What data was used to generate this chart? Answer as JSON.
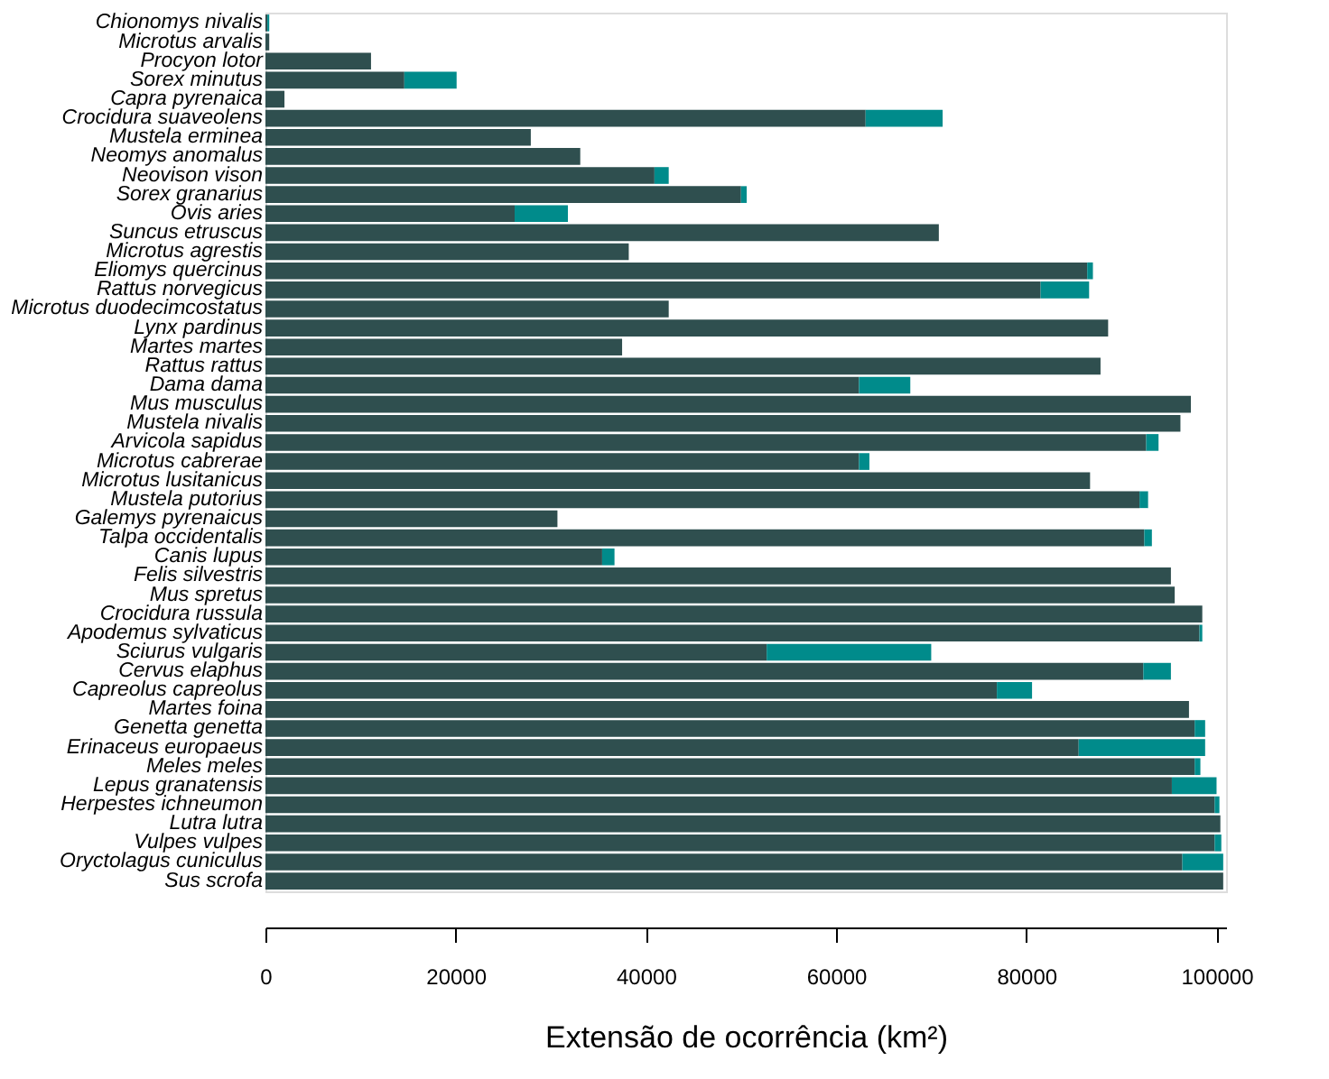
{
  "chart_data": {
    "type": "bar",
    "orientation": "horizontal",
    "stacked": true,
    "xlabel": "Extensão de ocorrência (km²)",
    "categories": [
      "Chionomys nivalis",
      "Microtus arvalis",
      "Procyon lotor",
      "Sorex minutus",
      "Capra pyrenaica",
      "Crocidura suaveolens",
      "Mustela erminea",
      "Neomys anomalus",
      "Neovison vison",
      "Sorex granarius",
      "Ovis aries",
      "Suncus etruscus",
      "Microtus agrestis",
      "Eliomys quercinus",
      "Rattus norvegicus",
      "Microtus duodecimcostatus",
      "Lynx pardinus",
      "Martes martes",
      "Rattus rattus",
      "Dama dama",
      "Mus musculus",
      "Mustela nivalis",
      "Arvicola sapidus",
      "Microtus cabrerae",
      "Microtus lusitanicus",
      "Mustela putorius",
      "Galemys pyrenaicus",
      "Talpa occidentalis",
      "Canis lupus",
      "Felis silvestris",
      "Mus spretus",
      "Crocidura russula",
      "Apodemus sylvaticus",
      "Sciurus vulgaris",
      "Cervus elaphus",
      "Capreolus capreolus",
      "Martes foina",
      "Genetta genetta",
      "Erinaceus europaeus",
      "Meles meles",
      "Lepus granatensis",
      "Herpestes ichneumon",
      "Lutra lutra",
      "Vulpes vulpes",
      "Oryctolagus cuniculus",
      "Sus scrofa"
    ],
    "series": [
      {
        "color": "#2f4f4f",
        "values": [
          200,
          400,
          11100,
          14600,
          2000,
          63100,
          27900,
          33100,
          40900,
          50000,
          26200,
          70800,
          38200,
          86400,
          81500,
          42400,
          88600,
          37500,
          87800,
          62400,
          97300,
          96200,
          92600,
          62400,
          86700,
          91900,
          30700,
          92400,
          35400,
          95200,
          95600,
          98500,
          98200,
          52700,
          92300,
          76900,
          97100,
          97700,
          85500,
          97700,
          95300,
          99800,
          100400,
          99800,
          96400,
          100700
        ]
      },
      {
        "color": "#008b8b",
        "values": [
          200,
          0,
          0,
          5500,
          0,
          8100,
          0,
          0,
          1500,
          600,
          5600,
          0,
          0,
          600,
          5100,
          0,
          0,
          0,
          0,
          5400,
          0,
          0,
          1300,
          1100,
          0,
          900,
          0,
          800,
          1300,
          0,
          0,
          0,
          300,
          17300,
          2900,
          3700,
          0,
          1100,
          13300,
          600,
          4700,
          500,
          0,
          700,
          4300,
          0
        ]
      }
    ],
    "xlim": [
      0,
      101000
    ],
    "xticks": [
      0,
      20000,
      40000,
      60000,
      80000,
      100000
    ],
    "grid": false,
    "legend": false
  }
}
